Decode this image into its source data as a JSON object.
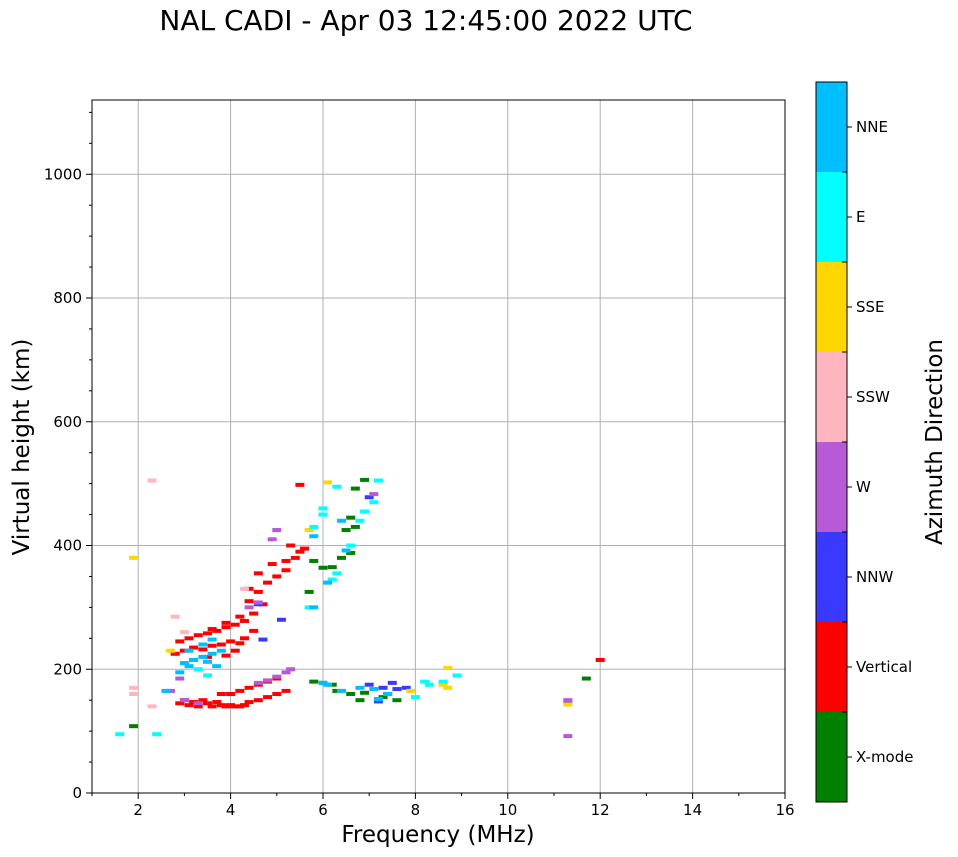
{
  "chart_data": {
    "type": "scatter",
    "title": "NAL CADI - Apr 03 12:45:00 2022 UTC",
    "xlabel": "Frequency (MHz)",
    "ylabel": "Virtual height (km)",
    "xlim": [
      1,
      16
    ],
    "ylim": [
      0,
      1120
    ],
    "xticks": [
      2,
      4,
      6,
      8,
      10,
      12,
      14,
      16
    ],
    "yticks": [
      0,
      200,
      400,
      600,
      800,
      1000
    ],
    "grid": true,
    "colorbar": {
      "label": "Azimuth Direction",
      "categories": [
        {
          "name": "X-mode",
          "color": "#008000"
        },
        {
          "name": "Vertical",
          "color": "#ff0000"
        },
        {
          "name": "NNW",
          "color": "#3a3aff"
        },
        {
          "name": "W",
          "color": "#b65ad6"
        },
        {
          "name": "SSW",
          "color": "#ffb6c1"
        },
        {
          "name": "SSE",
          "color": "#ffd700"
        },
        {
          "name": "E",
          "color": "#00ffff"
        },
        {
          "name": "NNE",
          "color": "#00bfff"
        }
      ]
    },
    "series": [
      {
        "name": "Vertical",
        "color": "#ff0000",
        "points": [
          [
            2.9,
            145
          ],
          [
            3.0,
            150
          ],
          [
            3.1,
            142
          ],
          [
            3.2,
            147
          ],
          [
            3.3,
            140
          ],
          [
            3.4,
            150
          ],
          [
            3.5,
            145
          ],
          [
            3.6,
            140
          ],
          [
            3.7,
            147
          ],
          [
            3.8,
            142
          ],
          [
            3.9,
            140
          ],
          [
            4.0,
            142
          ],
          [
            4.1,
            140
          ],
          [
            4.2,
            140
          ],
          [
            4.3,
            142
          ],
          [
            4.4,
            147
          ],
          [
            4.6,
            150
          ],
          [
            4.8,
            155
          ],
          [
            5.0,
            160
          ],
          [
            5.2,
            165
          ],
          [
            3.8,
            160
          ],
          [
            4.0,
            160
          ],
          [
            4.2,
            165
          ],
          [
            4.4,
            170
          ],
          [
            4.6,
            175
          ],
          [
            4.8,
            180
          ],
          [
            5.0,
            185
          ],
          [
            2.8,
            225
          ],
          [
            3.0,
            230
          ],
          [
            3.2,
            235
          ],
          [
            3.4,
            232
          ],
          [
            3.6,
            238
          ],
          [
            3.8,
            240
          ],
          [
            4.0,
            245
          ],
          [
            4.2,
            242
          ],
          [
            2.9,
            245
          ],
          [
            3.1,
            250
          ],
          [
            3.3,
            255
          ],
          [
            3.5,
            258
          ],
          [
            3.7,
            262
          ],
          [
            3.9,
            268
          ],
          [
            4.1,
            272
          ],
          [
            4.3,
            278
          ],
          [
            4.5,
            290
          ],
          [
            4.7,
            305
          ],
          [
            3.6,
            265
          ],
          [
            3.9,
            275
          ],
          [
            4.2,
            285
          ],
          [
            4.4,
            310
          ],
          [
            4.6,
            325
          ],
          [
            4.8,
            340
          ],
          [
            5.0,
            350
          ],
          [
            5.2,
            360
          ],
          [
            5.4,
            380
          ],
          [
            5.6,
            395
          ],
          [
            3.2,
            215
          ],
          [
            3.5,
            220
          ],
          [
            3.9,
            222
          ],
          [
            4.1,
            230
          ],
          [
            4.3,
            250
          ],
          [
            4.5,
            262
          ],
          [
            5.3,
            400
          ],
          [
            5.5,
            390
          ],
          [
            5.2,
            375
          ],
          [
            4.9,
            370
          ],
          [
            4.6,
            355
          ],
          [
            4.4,
            330
          ],
          [
            5.5,
            498
          ],
          [
            12.0,
            215
          ]
        ]
      },
      {
        "name": "X-mode",
        "color": "#008000",
        "points": [
          [
            5.8,
            180
          ],
          [
            6.0,
            178
          ],
          [
            6.2,
            175
          ],
          [
            6.3,
            165
          ],
          [
            6.6,
            160
          ],
          [
            6.9,
            162
          ],
          [
            7.3,
            155
          ],
          [
            7.6,
            150
          ],
          [
            6.8,
            150
          ],
          [
            6.2,
            365
          ],
          [
            6.4,
            380
          ],
          [
            6.6,
            388
          ],
          [
            6.5,
            425
          ],
          [
            6.7,
            430
          ],
          [
            6.6,
            445
          ],
          [
            6.7,
            492
          ],
          [
            6.9,
            506
          ],
          [
            6.0,
            364
          ],
          [
            5.8,
            375
          ],
          [
            5.7,
            325
          ],
          [
            11.7,
            185
          ],
          [
            1.9,
            108
          ]
        ]
      },
      {
        "name": "NNW",
        "color": "#3a3aff",
        "points": [
          [
            7.0,
            175
          ],
          [
            7.3,
            170
          ],
          [
            7.5,
            178
          ],
          [
            7.6,
            168
          ],
          [
            7.8,
            170
          ],
          [
            7.4,
            160
          ],
          [
            7.2,
            148
          ],
          [
            4.7,
            248
          ],
          [
            5.1,
            280
          ],
          [
            7.0,
            478
          ],
          [
            4.6,
            305
          ],
          [
            11.3,
            148
          ]
        ]
      },
      {
        "name": "W",
        "color": "#b65ad6",
        "points": [
          [
            3.0,
            150
          ],
          [
            3.3,
            145
          ],
          [
            4.6,
            178
          ],
          [
            4.8,
            182
          ],
          [
            5.0,
            188
          ],
          [
            5.2,
            195
          ],
          [
            5.3,
            200
          ],
          [
            4.9,
            410
          ],
          [
            5.0,
            425
          ],
          [
            4.6,
            308
          ],
          [
            11.3,
            150
          ],
          [
            11.3,
            92
          ],
          [
            7.1,
            483
          ],
          [
            2.9,
            185
          ],
          [
            2.7,
            165
          ],
          [
            4.4,
            300
          ]
        ]
      },
      {
        "name": "SSW",
        "color": "#ffb6c1",
        "points": [
          [
            2.3,
            505
          ],
          [
            2.8,
            285
          ],
          [
            3.0,
            260
          ],
          [
            4.3,
            330
          ],
          [
            1.9,
            170
          ],
          [
            2.3,
            140
          ],
          [
            1.9,
            160
          ]
        ]
      },
      {
        "name": "SSE",
        "color": "#ffd700",
        "points": [
          [
            6.1,
            502
          ],
          [
            5.7,
            425
          ],
          [
            8.6,
            175
          ],
          [
            8.7,
            170
          ],
          [
            8.7,
            202
          ],
          [
            7.9,
            165
          ],
          [
            1.9,
            380
          ],
          [
            2.7,
            230
          ],
          [
            11.3,
            143
          ]
        ]
      },
      {
        "name": "E",
        "color": "#00ffff",
        "points": [
          [
            6.8,
            440
          ],
          [
            6.9,
            455
          ],
          [
            6.6,
            400
          ],
          [
            6.3,
            355
          ],
          [
            6.2,
            345
          ],
          [
            5.7,
            300
          ],
          [
            5.8,
            430
          ],
          [
            6.0,
            450
          ],
          [
            6.0,
            460
          ],
          [
            6.3,
            495
          ],
          [
            8.2,
            180
          ],
          [
            8.3,
            175
          ],
          [
            8.6,
            180
          ],
          [
            8.9,
            190
          ],
          [
            8.0,
            155
          ],
          [
            7.1,
            470
          ],
          [
            7.2,
            505
          ],
          [
            2.4,
            95
          ],
          [
            1.6,
            95
          ],
          [
            3.3,
            200
          ],
          [
            3.5,
            190
          ]
        ]
      },
      {
        "name": "NNE",
        "color": "#00bfff",
        "points": [
          [
            3.0,
            210
          ],
          [
            3.2,
            215
          ],
          [
            3.4,
            220
          ],
          [
            3.6,
            225
          ],
          [
            3.8,
            230
          ],
          [
            3.4,
            240
          ],
          [
            3.1,
            230
          ],
          [
            3.5,
            212
          ],
          [
            3.7,
            205
          ],
          [
            2.9,
            195
          ],
          [
            3.1,
            205
          ],
          [
            7.1,
            168
          ],
          [
            7.4,
            160
          ],
          [
            7.2,
            152
          ],
          [
            6.8,
            170
          ],
          [
            6.4,
            165
          ],
          [
            6.1,
            175
          ],
          [
            6.0,
            178
          ],
          [
            5.8,
            415
          ],
          [
            5.8,
            300
          ],
          [
            6.1,
            340
          ],
          [
            6.5,
            392
          ],
          [
            6.4,
            440
          ],
          [
            2.6,
            165
          ],
          [
            3.6,
            248
          ]
        ]
      }
    ]
  }
}
